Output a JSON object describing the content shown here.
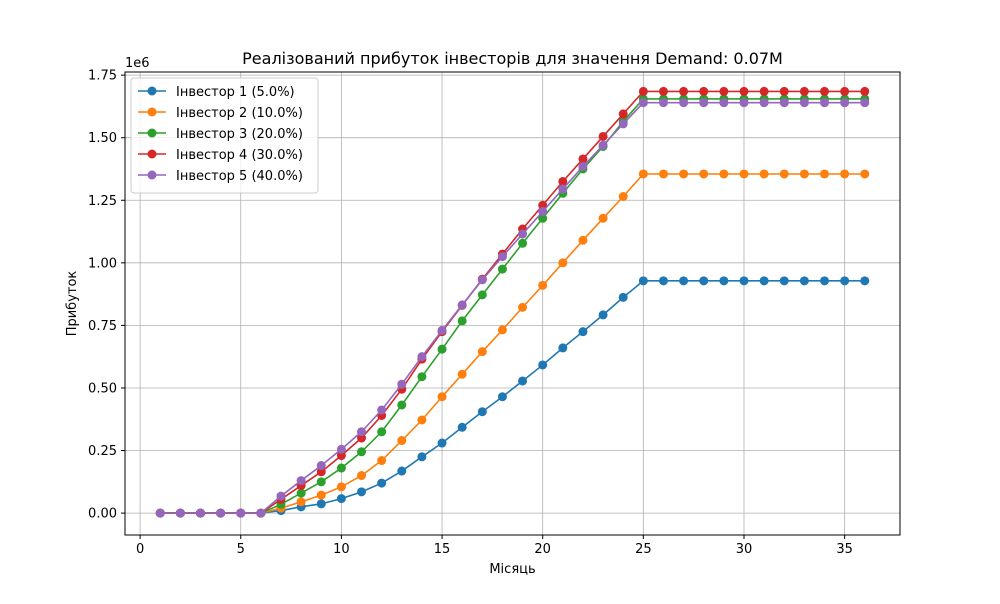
{
  "chart_data": {
    "type": "line",
    "title": "Реалізований прибуток інвесторів для значення Demand: 0.07M",
    "xlabel": "Місяць",
    "ylabel": "Прибуток",
    "y_offset_label": "1e6",
    "y_multiplier": 1000000,
    "xlim": [
      -0.75,
      37.75
    ],
    "ylim": [
      -0.0875,
      1.7625
    ],
    "x_ticks": [
      0,
      5,
      10,
      15,
      20,
      25,
      30,
      35
    ],
    "y_ticks": [
      0.0,
      0.25,
      0.5,
      0.75,
      1.0,
      1.25,
      1.5,
      1.75
    ],
    "y_tick_labels": [
      "0.00",
      "0.25",
      "0.50",
      "0.75",
      "1.00",
      "1.25",
      "1.50",
      "1.75"
    ],
    "grid": true,
    "legend_position": "top-left",
    "x": [
      1,
      2,
      3,
      4,
      5,
      6,
      7,
      8,
      9,
      10,
      11,
      12,
      13,
      14,
      15,
      16,
      17,
      18,
      19,
      20,
      21,
      22,
      23,
      24,
      25,
      26,
      27,
      28,
      29,
      30,
      31,
      32,
      33,
      34,
      35,
      36
    ],
    "series": [
      {
        "name": "Інвестор 1 (5.0%)",
        "color": "#1f77b4",
        "values": [
          0,
          0,
          0,
          0,
          0,
          0,
          0.01,
          0.025,
          0.037,
          0.058,
          0.085,
          0.12,
          0.168,
          0.225,
          0.28,
          0.343,
          0.405,
          0.465,
          0.528,
          0.592,
          0.66,
          0.725,
          0.792,
          0.862,
          0.928,
          0.928,
          0.928,
          0.928,
          0.928,
          0.928,
          0.928,
          0.928,
          0.928,
          0.928,
          0.928,
          0.928
        ]
      },
      {
        "name": "Інвестор 2 (10.0%)",
        "color": "#ff7f0e",
        "values": [
          0,
          0,
          0,
          0,
          0,
          0,
          0.02,
          0.045,
          0.072,
          0.105,
          0.15,
          0.21,
          0.29,
          0.372,
          0.465,
          0.555,
          0.645,
          0.732,
          0.822,
          0.91,
          1.0,
          1.09,
          1.178,
          1.265,
          1.355,
          1.355,
          1.355,
          1.355,
          1.355,
          1.355,
          1.355,
          1.355,
          1.355,
          1.355,
          1.355,
          1.355
        ]
      },
      {
        "name": "Інвестор 3 (20.0%)",
        "color": "#2ca02c",
        "values": [
          0,
          0,
          0,
          0,
          0,
          0,
          0.035,
          0.08,
          0.125,
          0.18,
          0.245,
          0.325,
          0.432,
          0.545,
          0.655,
          0.768,
          0.872,
          0.975,
          1.078,
          1.178,
          1.278,
          1.375,
          1.465,
          1.565,
          1.655,
          1.655,
          1.655,
          1.655,
          1.655,
          1.655,
          1.655,
          1.655,
          1.655,
          1.655,
          1.655,
          1.655
        ]
      },
      {
        "name": "Інвестор 4 (30.0%)",
        "color": "#d62728",
        "values": [
          0,
          0,
          0,
          0,
          0,
          0,
          0.055,
          0.11,
          0.165,
          0.23,
          0.3,
          0.39,
          0.495,
          0.615,
          0.725,
          0.83,
          0.935,
          1.035,
          1.135,
          1.23,
          1.325,
          1.415,
          1.505,
          1.595,
          1.685,
          1.685,
          1.685,
          1.685,
          1.685,
          1.685,
          1.685,
          1.685,
          1.685,
          1.685,
          1.685,
          1.685
        ]
      },
      {
        "name": "Інвестор 5 (40.0%)",
        "color": "#9467bd",
        "values": [
          0,
          0,
          0,
          0,
          0,
          0,
          0.068,
          0.13,
          0.19,
          0.255,
          0.325,
          0.412,
          0.515,
          0.625,
          0.73,
          0.832,
          0.932,
          1.025,
          1.115,
          1.205,
          1.295,
          1.385,
          1.47,
          1.555,
          1.64,
          1.64,
          1.64,
          1.64,
          1.64,
          1.64,
          1.64,
          1.64,
          1.64,
          1.64,
          1.64,
          1.64
        ]
      }
    ]
  }
}
